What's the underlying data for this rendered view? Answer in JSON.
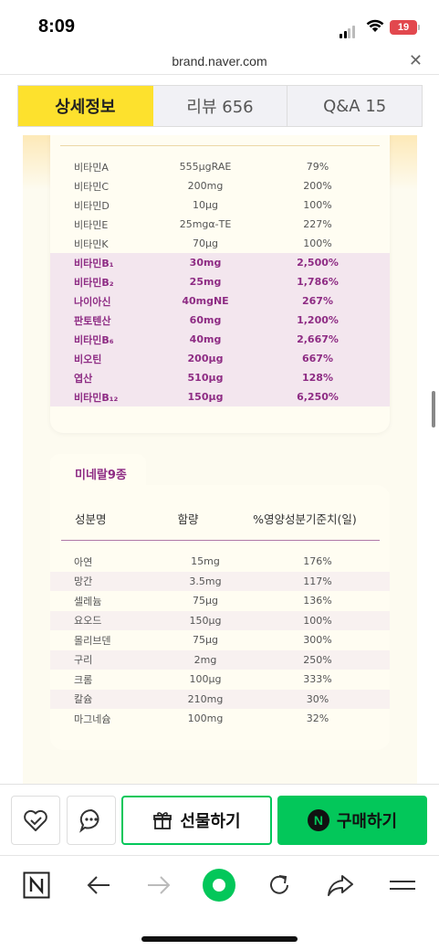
{
  "status": {
    "time": "8:09",
    "battery": "19"
  },
  "browser": {
    "url": "brand.naver.com"
  },
  "tabs": [
    {
      "label": "상세정보"
    },
    {
      "label": "리뷰  656"
    },
    {
      "label": "Q&A  15"
    }
  ],
  "vitamins": [
    {
      "name": "비타민A",
      "amount": "555μgRAE",
      "percent": "79%",
      "highlight": false
    },
    {
      "name": "비타민C",
      "amount": "200mg",
      "percent": "200%",
      "highlight": false
    },
    {
      "name": "비타민D",
      "amount": "10μg",
      "percent": "100%",
      "highlight": false
    },
    {
      "name": "비타민E",
      "amount": "25mgα-TE",
      "percent": "227%",
      "highlight": false
    },
    {
      "name": "비타민K",
      "amount": "70μg",
      "percent": "100%",
      "highlight": false
    },
    {
      "name": "비타민B₁",
      "amount": "30mg",
      "percent": "2,500%",
      "highlight": true
    },
    {
      "name": "비타민B₂",
      "amount": "25mg",
      "percent": "1,786%",
      "highlight": true
    },
    {
      "name": "나이아신",
      "amount": "40mgNE",
      "percent": "267%",
      "highlight": true
    },
    {
      "name": "판토텐산",
      "amount": "60mg",
      "percent": "1,200%",
      "highlight": true
    },
    {
      "name": "비타민B₆",
      "amount": "40mg",
      "percent": "2,667%",
      "highlight": true
    },
    {
      "name": "비오틴",
      "amount": "200μg",
      "percent": "667%",
      "highlight": true
    },
    {
      "name": "엽산",
      "amount": "510μg",
      "percent": "128%",
      "highlight": true
    },
    {
      "name": "비타민B₁₂",
      "amount": "150μg",
      "percent": "6,250%",
      "highlight": true
    }
  ],
  "minerals": {
    "tab_label": "미네랄9종",
    "headers": {
      "name": "성분명",
      "amount": "함량",
      "percent": "%영양성분기준치(일)"
    },
    "rows": [
      {
        "name": "아연",
        "amount": "15mg",
        "percent": "176%"
      },
      {
        "name": "망간",
        "amount": "3.5mg",
        "percent": "117%"
      },
      {
        "name": "셀레늄",
        "amount": "75μg",
        "percent": "136%"
      },
      {
        "name": "요오드",
        "amount": "150μg",
        "percent": "100%"
      },
      {
        "name": "몰리브덴",
        "amount": "75μg",
        "percent": "300%"
      },
      {
        "name": "구리",
        "amount": "2mg",
        "percent": "250%"
      },
      {
        "name": "크롬",
        "amount": "100μg",
        "percent": "333%"
      },
      {
        "name": "칼슘",
        "amount": "210mg",
        "percent": "30%"
      },
      {
        "name": "마그네슘",
        "amount": "100mg",
        "percent": "32%"
      }
    ]
  },
  "actions": {
    "gift_label": "선물하기",
    "buy_label": "구매하기",
    "buy_badge": "N"
  },
  "colors": {
    "accent_yellow": "#fde12d",
    "naver_green": "#03c75a",
    "highlight_purple": "#8e2c84"
  }
}
